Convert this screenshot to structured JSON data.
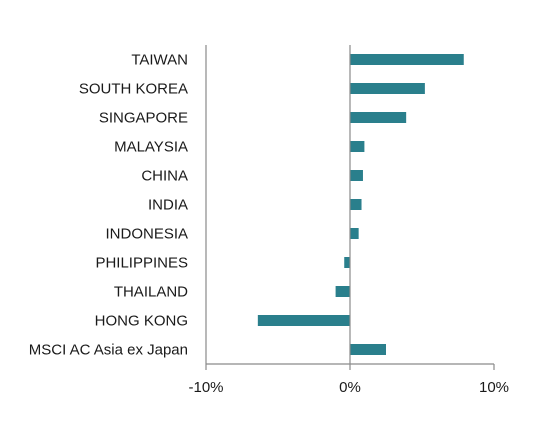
{
  "chart_data": {
    "type": "bar",
    "orientation": "horizontal",
    "categories": [
      "TAIWAN",
      "SOUTH KOREA",
      "SINGAPORE",
      "MALAYSIA",
      "CHINA",
      "INDIA",
      "INDONESIA",
      "PHILIPPINES",
      "THAILAND",
      "HONG KONG",
      "MSCI AC Asia ex Japan"
    ],
    "values": [
      7.9,
      5.2,
      3.9,
      1.0,
      0.9,
      0.8,
      0.6,
      -0.4,
      -1.0,
      -6.4,
      2.5
    ],
    "xlim": [
      -10,
      10
    ],
    "xticks": [
      -10,
      0,
      10
    ],
    "xtick_labels": [
      "-10%",
      "0%",
      "10%"
    ],
    "bar_color": "#2a7f8c",
    "axis_color": "#8a8a8a",
    "grid": false,
    "legend": "none"
  }
}
